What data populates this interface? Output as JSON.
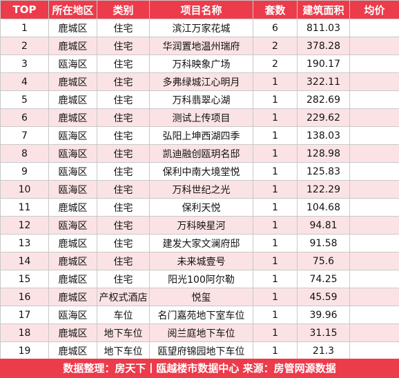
{
  "table": {
    "headers": [
      "TOP",
      "所在地区",
      "类别",
      "项目名称",
      "套数",
      "建筑面积",
      "均价"
    ],
    "rows": [
      [
        "1",
        "鹿城区",
        "住宅",
        "滨江万家花城",
        "6",
        "811.03",
        ""
      ],
      [
        "2",
        "鹿城区",
        "住宅",
        "华润置地温州瑞府",
        "2",
        "378.28",
        ""
      ],
      [
        "3",
        "瓯海区",
        "住宅",
        "万科映象广场",
        "2",
        "190.17",
        ""
      ],
      [
        "4",
        "鹿城区",
        "住宅",
        "多弗绿城江心明月",
        "1",
        "322.11",
        ""
      ],
      [
        "5",
        "鹿城区",
        "住宅",
        "万科翡翠心湖",
        "1",
        "282.69",
        ""
      ],
      [
        "6",
        "鹿城区",
        "住宅",
        "测试上传项目",
        "1",
        "229.62",
        ""
      ],
      [
        "7",
        "瓯海区",
        "住宅",
        "弘阳上坤西湖四季",
        "1",
        "138.03",
        ""
      ],
      [
        "8",
        "瓯海区",
        "住宅",
        "凯迪融创瓯玥名邸",
        "1",
        "128.98",
        ""
      ],
      [
        "9",
        "瓯海区",
        "住宅",
        "保利中南大境堂悦",
        "1",
        "125.83",
        ""
      ],
      [
        "10",
        "瓯海区",
        "住宅",
        "万科世纪之光",
        "1",
        "122.29",
        ""
      ],
      [
        "11",
        "鹿城区",
        "住宅",
        "保利天悦",
        "1",
        "104.68",
        ""
      ],
      [
        "12",
        "瓯海区",
        "住宅",
        "万科映星河",
        "1",
        "94.81",
        ""
      ],
      [
        "13",
        "鹿城区",
        "住宅",
        "建发大家文澜府邸",
        "1",
        "91.58",
        ""
      ],
      [
        "14",
        "鹿城区",
        "住宅",
        "未来城壹号",
        "1",
        "75.6",
        ""
      ],
      [
        "15",
        "鹿城区",
        "住宅",
        "阳光100阿尔勒",
        "1",
        "74.25",
        ""
      ],
      [
        "16",
        "鹿城区",
        "产权式酒店",
        "悦玺",
        "1",
        "45.59",
        ""
      ],
      [
        "17",
        "瓯海区",
        "车位",
        "名门嘉苑地下室车位",
        "1",
        "39.96",
        ""
      ],
      [
        "18",
        "鹿城区",
        "地下车位",
        "阅兰庭地下车位",
        "1",
        "31.15",
        ""
      ],
      [
        "19",
        "鹿城区",
        "地下车位",
        "瓯望府锦园地下车位",
        "1",
        "21.3",
        ""
      ]
    ]
  },
  "footer": {
    "text": "数据整理：房天下丨瓯越楼市数据中心   来源：房管网源数据"
  },
  "colors": {
    "header_bg": "#ec3b4b",
    "header_text": "#ffffff",
    "row_alt_bg": "#fbe3e5",
    "row_bg": "#ffffff"
  }
}
